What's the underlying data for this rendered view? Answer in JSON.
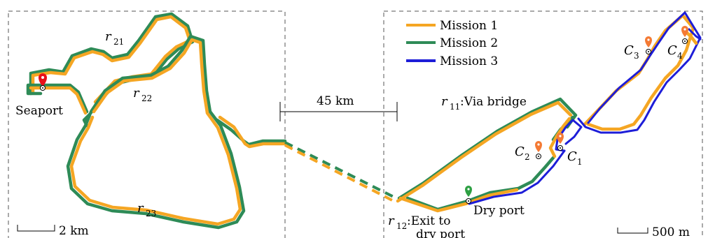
{
  "colors": {
    "mission1": "#f5a623",
    "mission2": "#2e8b57",
    "mission3": "#1d1dd8",
    "seaport_marker": "#e8101a",
    "dryport_marker": "#2ea043",
    "customer_marker": "#f47a34"
  },
  "legend": {
    "items": [
      {
        "label": "Mission 1",
        "color": "#f5a623"
      },
      {
        "label": "Mission 2",
        "color": "#2e8b57"
      },
      {
        "label": "Mission 3",
        "color": "#1d1dd8"
      }
    ]
  },
  "left_map": {
    "seaport_label": "Seaport",
    "routes": [
      {
        "base": "r",
        "sub": "21"
      },
      {
        "base": "r",
        "sub": "22"
      },
      {
        "base": "r",
        "sub": "23"
      }
    ],
    "scale_label": "2 km"
  },
  "gap": {
    "distance_label": "45 km"
  },
  "right_map": {
    "r11": {
      "base": "r",
      "sub": "11",
      "desc": ":Via bridge"
    },
    "r12": {
      "base": "r",
      "sub": "12",
      "desc_line1": ":Exit to",
      "desc_line2": "dry port"
    },
    "dryport_label": "Dry port",
    "customers": [
      {
        "base": "C",
        "sub": "1"
      },
      {
        "base": "C",
        "sub": "2"
      },
      {
        "base": "C",
        "sub": "3"
      },
      {
        "base": "C",
        "sub": "4"
      }
    ],
    "scale_label": "500 m"
  },
  "icons": {
    "seaport": "location-pin-icon",
    "dryport": "location-pin-icon",
    "customer": "location-pin-icon"
  }
}
